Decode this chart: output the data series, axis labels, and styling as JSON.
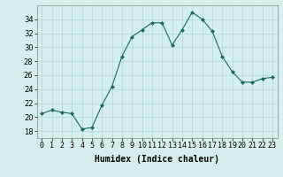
{
  "x": [
    0,
    1,
    2,
    3,
    4,
    5,
    6,
    7,
    8,
    9,
    10,
    11,
    12,
    13,
    14,
    15,
    16,
    17,
    18,
    19,
    20,
    21,
    22,
    23
  ],
  "y": [
    20.5,
    21.0,
    20.7,
    20.5,
    18.3,
    18.5,
    21.7,
    24.4,
    28.7,
    31.5,
    32.5,
    33.5,
    33.5,
    30.3,
    32.5,
    35.0,
    34.0,
    32.3,
    28.7,
    26.5,
    25.0,
    25.0,
    25.5,
    25.7
  ],
  "line_color": "#1a6b5a",
  "marker": "D",
  "marker_size": 2,
  "background_color": "#d4eeee",
  "grid_color": "#b8d8d8",
  "xlabel": "Humidex (Indice chaleur)",
  "ylim": [
    17,
    36
  ],
  "xlim": [
    -0.5,
    23.5
  ],
  "yticks": [
    18,
    20,
    22,
    24,
    26,
    28,
    30,
    32,
    34
  ],
  "xtick_labels": [
    "0",
    "1",
    "2",
    "3",
    "4",
    "5",
    "6",
    "7",
    "8",
    "9",
    "10",
    "11",
    "12",
    "13",
    "14",
    "15",
    "16",
    "17",
    "18",
    "19",
    "20",
    "21",
    "22",
    "23"
  ],
  "xlabel_fontsize": 7,
  "tick_fontsize": 6
}
